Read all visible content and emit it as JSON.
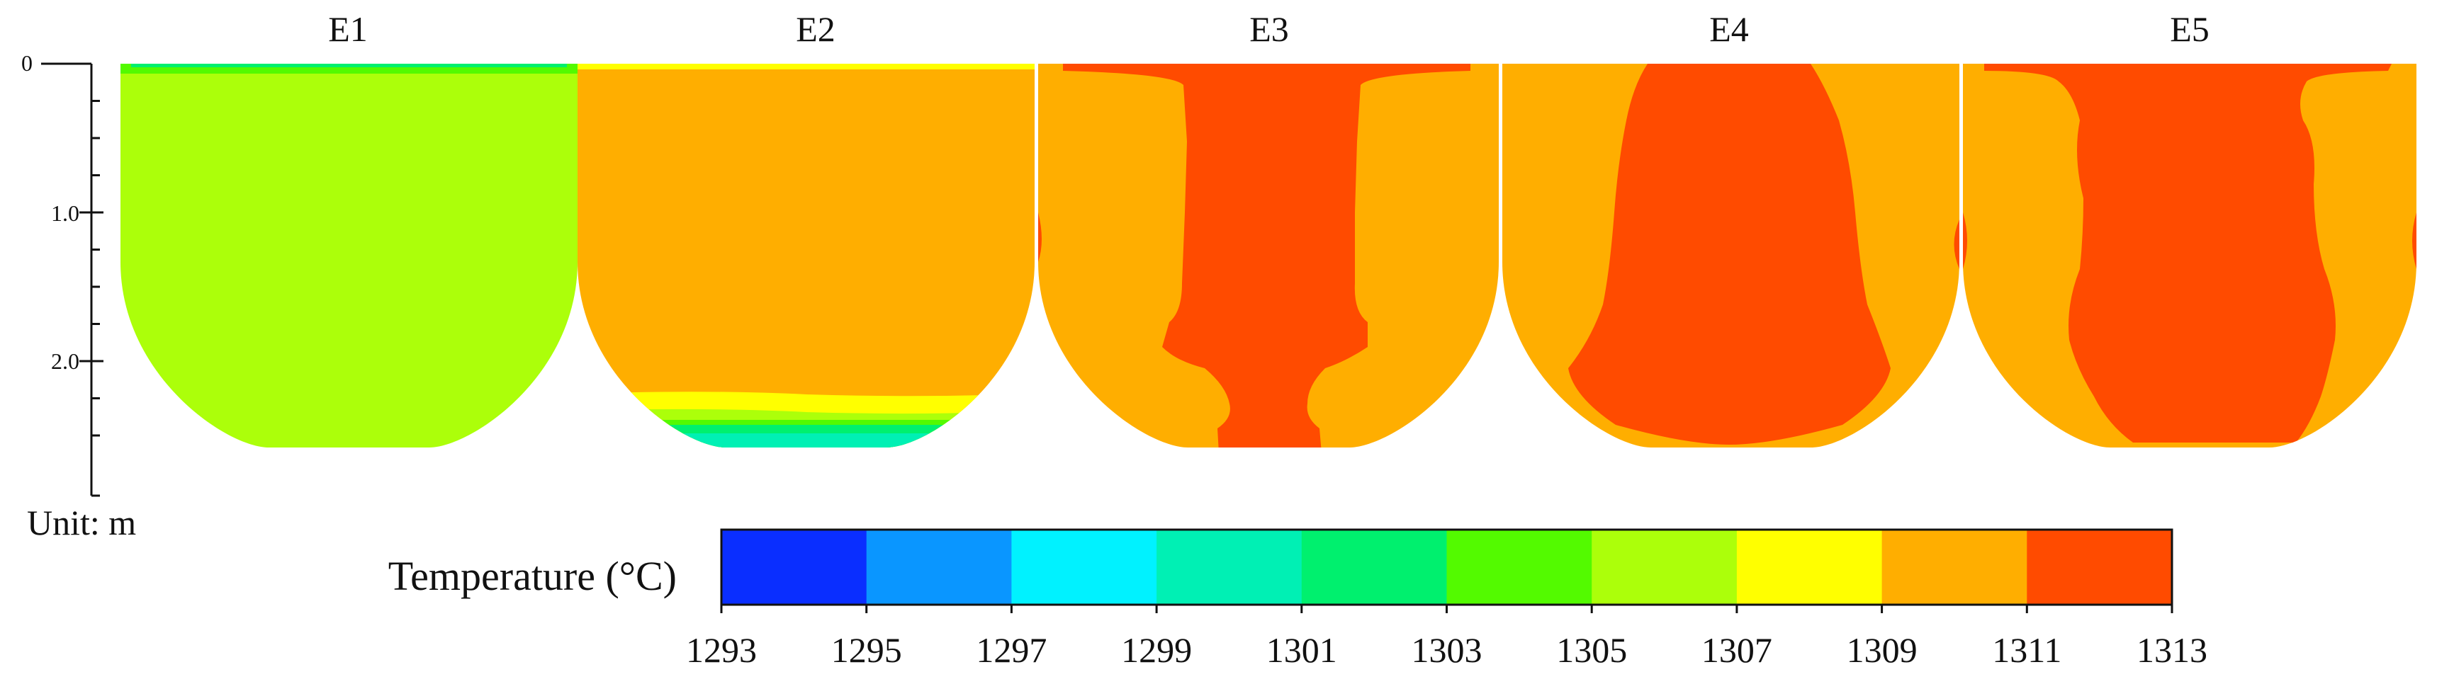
{
  "panels": [
    {
      "id": "E1",
      "label": "E1"
    },
    {
      "id": "E2",
      "label": "E2"
    },
    {
      "id": "E3",
      "label": "E3"
    },
    {
      "id": "E4",
      "label": "E4"
    },
    {
      "id": "E5",
      "label": "E5"
    }
  ],
  "depth_axis": {
    "ticks": [
      {
        "value": 0,
        "label": "0"
      },
      {
        "value": 1.0,
        "label": "1.0"
      },
      {
        "value": 2.0,
        "label": "2.0"
      }
    ],
    "max_depth": 2.55,
    "unit_label": "Unit: m"
  },
  "colorbar": {
    "title": "Temperature (°C)",
    "ticks": [
      "1293",
      "1295",
      "1297",
      "1299",
      "1301",
      "1303",
      "1305",
      "1307",
      "1309",
      "1311",
      "1313"
    ],
    "colors": [
      "#0a2eff",
      "#0a96ff",
      "#00f2ff",
      "#00f0b4",
      "#00f06e",
      "#53fa00",
      "#acff0a",
      "#ffff00",
      "#ffae00",
      "#ff4b00"
    ]
  },
  "palette": {
    "green_1303": "#53fa00",
    "green_1301": "#00f06e",
    "cyan_1299": "#00f0b4",
    "lime_1305": "#acff0a",
    "yellow_1307": "#ffff00",
    "orange_1309": "#ffae00",
    "red_1311": "#ff4b00"
  }
}
